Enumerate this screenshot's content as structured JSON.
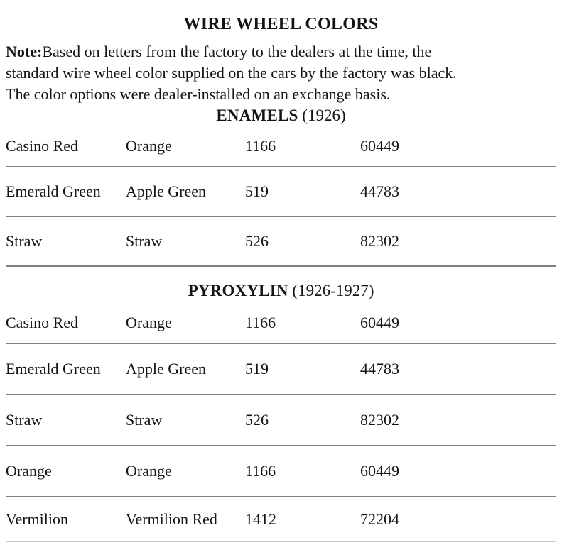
{
  "page": {
    "title": "WIRE WHEEL COLORS",
    "note_label": "Note:",
    "note_line1": "Based on letters from the factory to the dealers at the time, the",
    "note_line2": "standard wire wheel color supplied on the cars by the factory was black.",
    "note_line3": "The color options were dealer-installed on an exchange basis."
  },
  "sections": [
    {
      "heading": "ENAMELS",
      "heading_suffix": " (1926)",
      "rows": [
        {
          "color": "Casino Red",
          "paint": "Orange",
          "code1": "1166",
          "code2": "60449"
        },
        {
          "color": "Emerald Green",
          "paint": "Apple Green",
          "code1": "519",
          "code2": "44783"
        },
        {
          "color": "Straw",
          "paint": "Straw",
          "code1": "526",
          "code2": "82302"
        }
      ]
    },
    {
      "heading": "PYROXYLIN",
      "heading_suffix": " (1926-1927)",
      "rows": [
        {
          "color": "Casino Red",
          "paint": "Orange",
          "code1": "1166",
          "code2": "60449"
        },
        {
          "color": "Emerald Green",
          "paint": "Apple Green",
          "code1": "519",
          "code2": "44783"
        },
        {
          "color": "Straw",
          "paint": "Straw",
          "code1": "526",
          "code2": "82302"
        },
        {
          "color": "Orange",
          "paint": "Orange",
          "code1": "1166",
          "code2": "60449"
        },
        {
          "color": "Vermilion",
          "paint": "Vermilion Red",
          "code1": "1412",
          "code2": "72204"
        }
      ]
    }
  ],
  "style": {
    "text_color": "#141414",
    "rule_color": "#7f7f7f",
    "background": "#ffffff"
  }
}
